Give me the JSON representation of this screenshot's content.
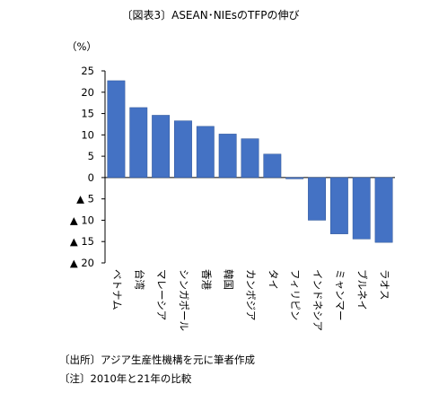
{
  "title": "〔図表3〕ASEAN･NIEsのTFPの伸び",
  "notes": {
    "source": "〔出所〕アジア生産性機構を元に筆者作成",
    "note": "〔注〕2010年と21年の比較"
  },
  "colors": {
    "bar": "#4472C4",
    "bar_edge": "#2F5597"
  },
  "chart_data": {
    "type": "bar",
    "title": "〔図表3〕ASEAN･NIEsのTFPの伸び",
    "unit_label": "（%）",
    "categories": [
      "ベトナム",
      "台湾",
      "マレーシア",
      "シンガポール",
      "香港",
      "韓国",
      "カンボジア",
      "タイ",
      "フィリピン",
      "インドネシア",
      "ミャンマー",
      "ブルネイ",
      "ラオス"
    ],
    "values": [
      22.7,
      16.4,
      14.6,
      13.3,
      12.0,
      10.2,
      9.1,
      5.5,
      -0.3,
      -10.0,
      -13.2,
      -14.4,
      -15.2
    ],
    "ylim": [
      -20,
      25
    ],
    "yticks": [
      25,
      20,
      15,
      10,
      5,
      0,
      -5,
      -10,
      -15,
      -20
    ],
    "ytick_labels": [
      "25",
      "20",
      "15",
      "10",
      "5",
      "0",
      "▲ 5",
      "▲ 10",
      "▲ 15",
      "▲ 20"
    ],
    "grid": false,
    "legend": "none"
  }
}
